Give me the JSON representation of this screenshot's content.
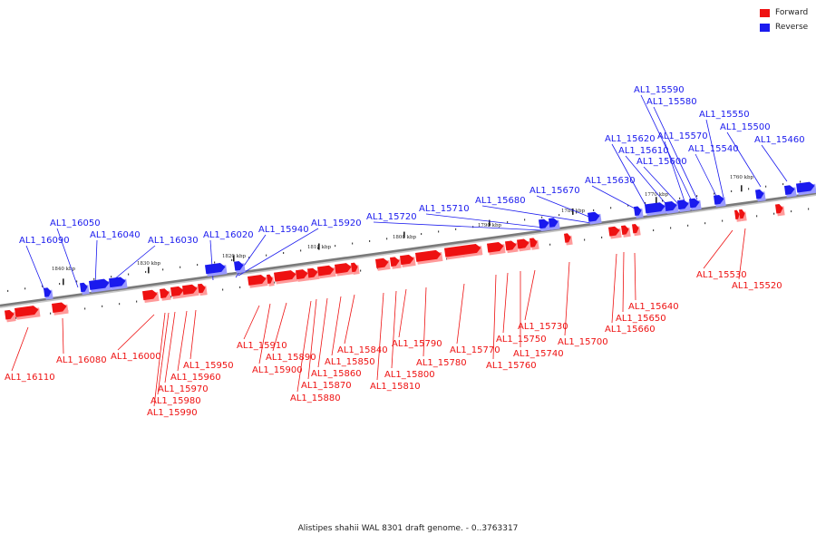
{
  "colors": {
    "forward": "#ee1111",
    "forward_shade": "#ff9a9a",
    "reverse": "#1a1aee",
    "reverse_shade": "#9a9aff",
    "backbone": "#7a7a7a",
    "label_text": "#222222"
  },
  "legend": {
    "forward_label": "Forward",
    "reverse_label": "Reverse"
  },
  "caption": "Alistipes shahii WAL 8301 draft genome. - 0..3763317",
  "scale_labels": [
    "1840 kbp",
    "1830 kbp",
    "1820 kbp",
    "1810 kbp",
    "1800 kbp",
    "1790 kbp",
    "1780 kbp",
    "1770 kbp",
    "1760 kbp"
  ],
  "reverse_genes": [
    "AL1_16090",
    "AL1_16050",
    "AL1_16040",
    "AL1_16030",
    "AL1_16020",
    "AL1_15940",
    "AL1_15920",
    "AL1_15720",
    "AL1_15710",
    "AL1_15680",
    "AL1_15670",
    "AL1_15630",
    "AL1_15620",
    "AL1_15610",
    "AL1_15600",
    "AL1_15590",
    "AL1_15580",
    "AL1_15570",
    "AL1_15550",
    "AL1_15540",
    "AL1_15500",
    "AL1_15460"
  ],
  "forward_genes": [
    "AL1_16110",
    "AL1_16080",
    "AL1_16000",
    "AL1_15990",
    "AL1_15980",
    "AL1_15970",
    "AL1_15960",
    "AL1_15950",
    "AL1_15910",
    "AL1_15900",
    "AL1_15890",
    "AL1_15880",
    "AL1_15870",
    "AL1_15860",
    "AL1_15850",
    "AL1_15840",
    "AL1_15810",
    "AL1_15800",
    "AL1_15790",
    "AL1_15780",
    "AL1_15770",
    "AL1_15760",
    "AL1_15750",
    "AL1_15740",
    "AL1_15730",
    "AL1_15700",
    "AL1_15660",
    "AL1_15650",
    "AL1_15640",
    "AL1_15530",
    "AL1_15520"
  ]
}
